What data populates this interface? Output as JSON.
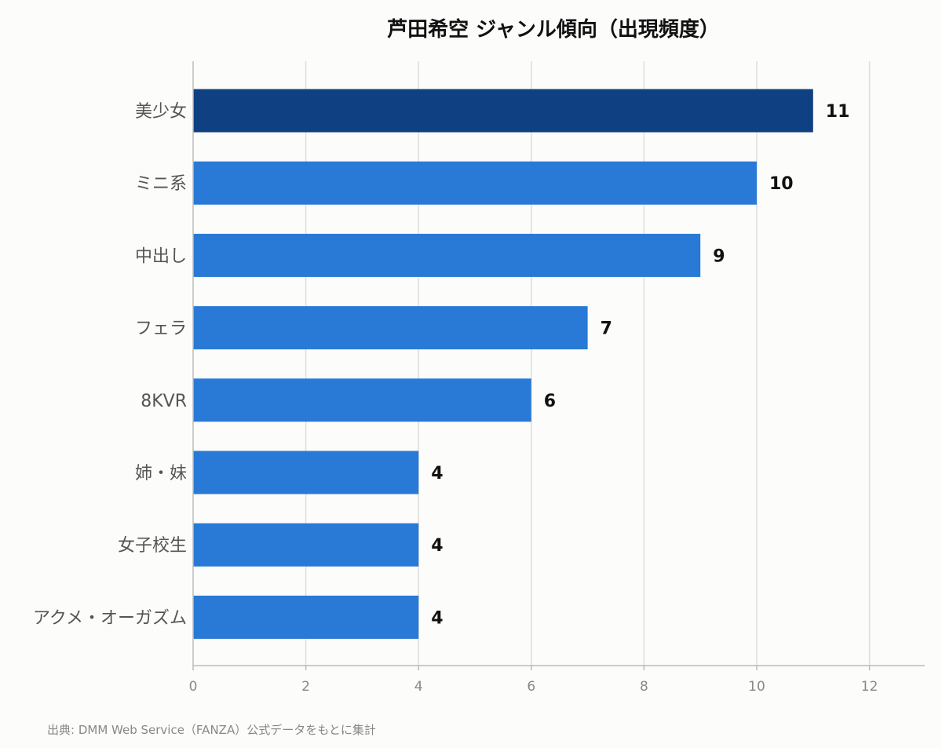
{
  "chart_data": {
    "type": "bar",
    "orientation": "horizontal",
    "title": "芦田希空 ジャンル傾向（出現頻度）",
    "categories": [
      "美少女",
      "ミニ系",
      "中出し",
      "フェラ",
      "8KVR",
      "姉・妹",
      "女子校生",
      "アクメ・オーガズム"
    ],
    "values": [
      11,
      10,
      9,
      7,
      6,
      4,
      4,
      4
    ],
    "xlabel": "",
    "ylabel": "",
    "xlim": [
      0,
      13
    ],
    "xticks": [
      0,
      2,
      4,
      6,
      8,
      10,
      12
    ],
    "grid": "vertical",
    "legend": "none",
    "colors": {
      "highlight": "#0f4082",
      "bar": "#2979d6",
      "grid": "#dddddd",
      "axis": "#bbbbbb"
    }
  },
  "source": "出典: DMM Web Service（FANZA）公式データをもとに集計"
}
